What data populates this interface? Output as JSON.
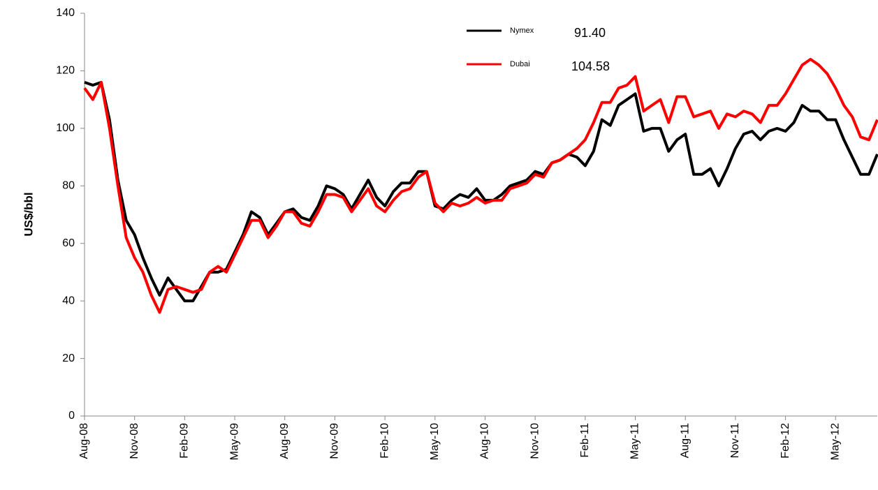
{
  "chart_data": {
    "type": "line",
    "ylabel": "US$/bbl",
    "categories": [
      "Aug-08",
      null,
      null,
      null,
      null,
      null,
      "Nov-08",
      null,
      null,
      null,
      null,
      null,
      "Feb-09",
      null,
      null,
      null,
      null,
      null,
      "May-09",
      null,
      null,
      null,
      null,
      null,
      "Aug-09",
      null,
      null,
      null,
      null,
      null,
      "Nov-09",
      null,
      null,
      null,
      null,
      null,
      "Feb-10",
      null,
      null,
      null,
      null,
      null,
      "May-10",
      null,
      null,
      null,
      null,
      null,
      "Aug-10",
      null,
      null,
      null,
      null,
      null,
      "Nov-10",
      null,
      null,
      null,
      null,
      null,
      "Feb-11",
      null,
      null,
      null,
      null,
      null,
      "May-11",
      null,
      null,
      null,
      null,
      null,
      "Aug-11",
      null,
      null,
      null,
      null,
      null,
      "Nov-11",
      null,
      null,
      null,
      null,
      null,
      "Feb-12",
      null,
      null,
      null,
      null,
      null,
      "May-12",
      null,
      null,
      null,
      null,
      null
    ],
    "series": [
      {
        "name": "Nymex",
        "color": "#000000",
        "values": [
          116,
          115,
          116,
          103,
          82,
          68,
          63,
          55,
          48,
          42,
          48,
          44,
          40,
          40,
          45,
          50,
          50,
          51,
          57,
          63,
          71,
          69,
          63,
          67,
          71,
          72,
          69,
          68,
          73,
          80,
          79,
          77,
          72,
          77,
          82,
          76,
          73,
          78,
          81,
          81,
          85,
          85,
          73,
          72,
          75,
          77,
          76,
          79,
          75,
          75,
          77,
          80,
          81,
          82,
          85,
          84,
          88,
          89,
          91,
          90,
          87,
          92,
          103,
          101,
          108,
          110,
          112,
          99,
          100,
          100,
          92,
          96,
          98,
          84,
          84,
          86,
          80,
          86,
          93,
          98,
          99,
          96,
          99,
          100,
          99,
          102,
          108,
          106,
          106,
          103,
          103,
          96,
          90,
          84,
          84,
          91
        ]
      },
      {
        "name": "Dubai",
        "color": "#ff0000",
        "values": [
          114,
          110,
          116,
          100,
          80,
          62,
          55,
          50,
          42,
          36,
          44,
          45,
          44,
          43,
          44,
          50,
          52,
          50,
          56,
          62,
          68,
          68,
          62,
          66,
          71,
          71,
          67,
          66,
          71,
          77,
          77,
          76,
          71,
          75,
          79,
          73,
          71,
          75,
          78,
          79,
          83,
          85,
          74,
          71,
          74,
          73,
          74,
          76,
          74,
          75,
          75,
          79,
          80,
          81,
          84,
          83,
          88,
          89,
          91,
          93,
          96,
          102,
          109,
          109,
          114,
          115,
          118,
          106,
          108,
          110,
          102,
          111,
          111,
          104,
          105,
          106,
          100,
          105,
          104,
          106,
          105,
          102,
          108,
          108,
          112,
          117,
          122,
          124,
          122,
          119,
          114,
          108,
          104,
          97,
          96,
          103
        ]
      }
    ],
    "annotations": [
      "91.40",
      "104.58"
    ],
    "ylim": [
      0,
      140
    ],
    "yticks": [
      0,
      20,
      40,
      60,
      80,
      100,
      120,
      140
    ],
    "grid": false
  }
}
